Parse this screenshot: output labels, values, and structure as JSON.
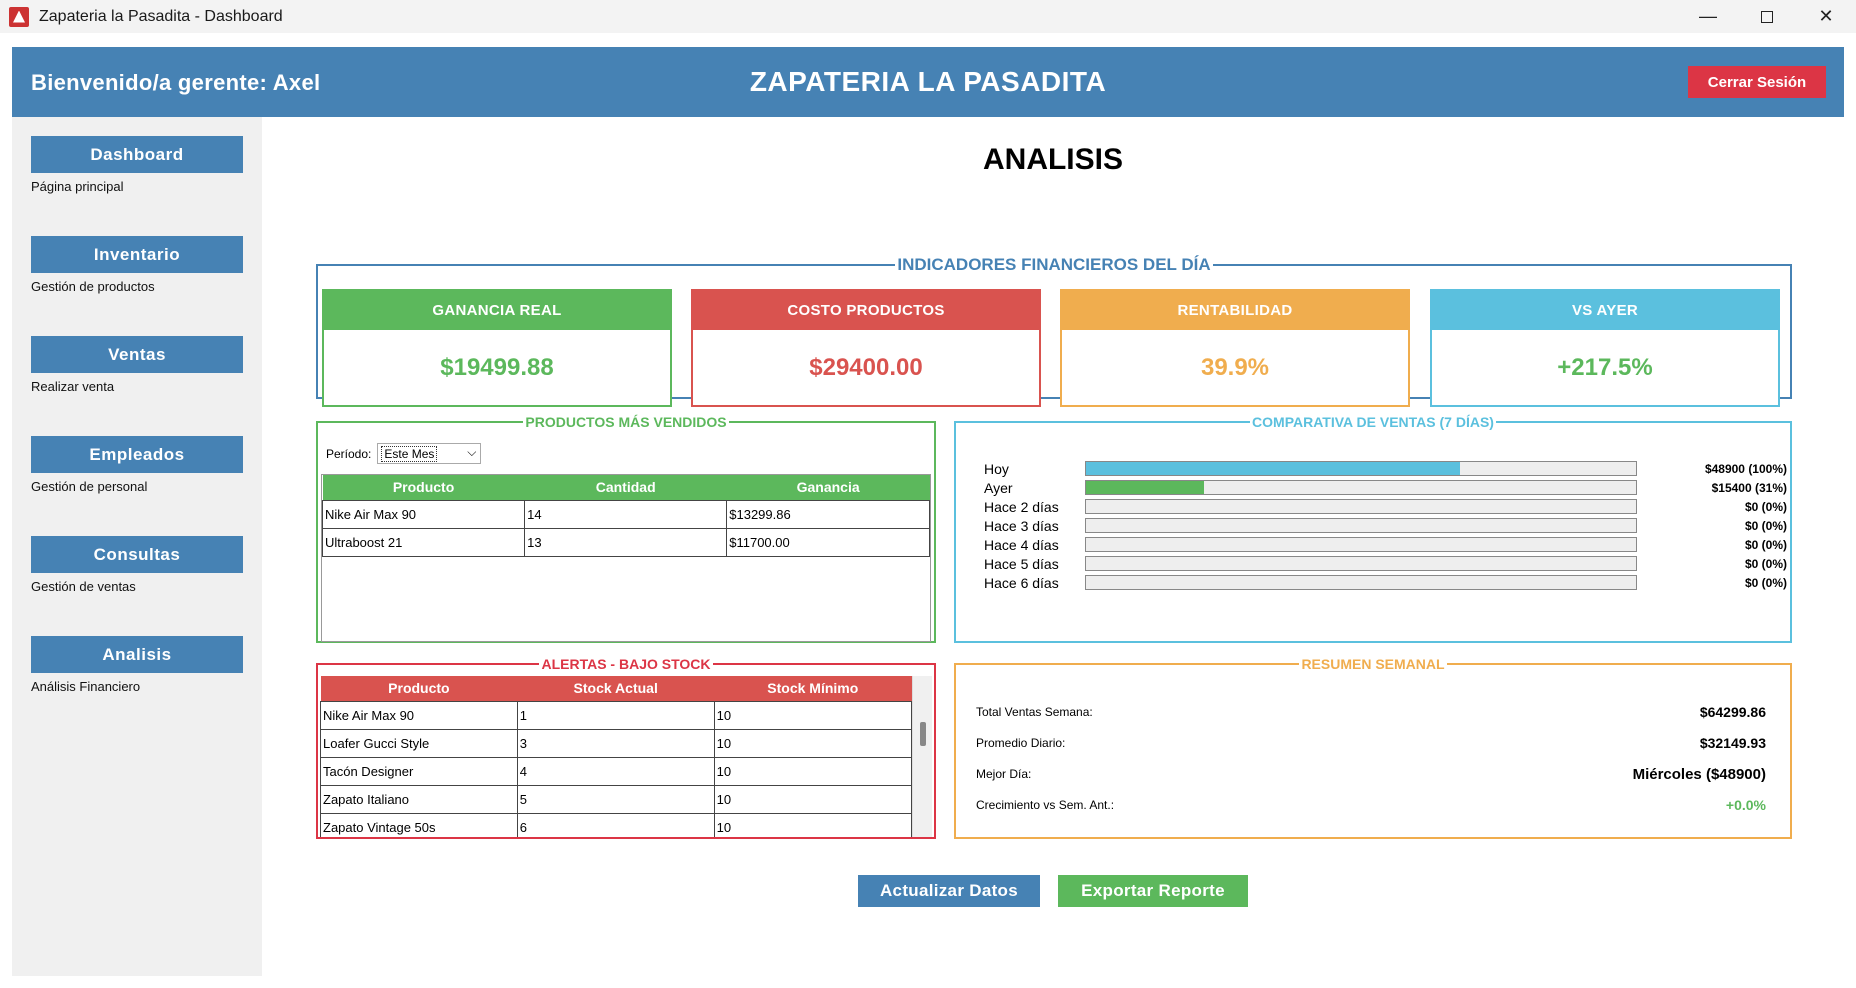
{
  "window": {
    "title": "Zapateria la Pasadita - Dashboard",
    "minimize": "—",
    "close": "✕"
  },
  "header": {
    "welcome": "Bienvenido/a gerente: Axel",
    "brand": "ZAPATERIA LA PASADITA",
    "logout": "Cerrar Sesión"
  },
  "sidebar": {
    "items": [
      {
        "label": "Dashboard",
        "desc": "Página principal"
      },
      {
        "label": "Inventario",
        "desc": "Gestión de productos"
      },
      {
        "label": "Ventas",
        "desc": "Realizar venta"
      },
      {
        "label": "Empleados",
        "desc": "Gestión de personal"
      },
      {
        "label": "Consultas",
        "desc": "Gestión de ventas"
      },
      {
        "label": "Analisis",
        "desc": "Análisis Financiero"
      }
    ]
  },
  "main": {
    "title": "ANALISIS",
    "indicators": {
      "legend": "INDICADORES FINANCIEROS DEL DÍA",
      "cards": [
        {
          "label": "GANANCIA REAL",
          "value": "$19499.88",
          "color": "#5cb85c"
        },
        {
          "label": "COSTO PRODUCTOS",
          "value": "$29400.00",
          "color": "#d9534f"
        },
        {
          "label": "RENTABILIDAD",
          "value": "39.9%",
          "color": "#f0ad4e"
        },
        {
          "label": "VS AYER",
          "value": "+217.5%",
          "color": "#5bc0de",
          "value_color": "#5cb85c"
        }
      ]
    },
    "top_products": {
      "legend": "PRODUCTOS MÁS VENDIDOS",
      "period_label": "Período:",
      "period_value": "Este Mes",
      "columns": [
        "Producto",
        "Cantidad",
        "Ganancia"
      ],
      "rows": [
        [
          "Nike Air Max 90",
          "14",
          "$13299.86"
        ],
        [
          "Ultraboost 21",
          "13",
          "$11700.00"
        ]
      ]
    },
    "sales_compare": {
      "legend": "COMPARATIVA DE VENTAS (7 DÍAS)",
      "rows": [
        {
          "label": "Hoy",
          "value": "$48900 (100%)",
          "fraction": 0.68,
          "color": "#5bc0de"
        },
        {
          "label": "Ayer",
          "value": "$15400 (31%)",
          "fraction": 0.214,
          "color": "#5cb85c"
        },
        {
          "label": "Hace 2 días",
          "value": "$0 (0%)",
          "fraction": 0,
          "color": "#5bc0de"
        },
        {
          "label": "Hace 3 días",
          "value": "$0 (0%)",
          "fraction": 0,
          "color": "#5bc0de"
        },
        {
          "label": "Hace 4 días",
          "value": "$0 (0%)",
          "fraction": 0,
          "color": "#5bc0de"
        },
        {
          "label": "Hace 5 días",
          "value": "$0 (0%)",
          "fraction": 0,
          "color": "#5bc0de"
        },
        {
          "label": "Hace 6 días",
          "value": "$0 (0%)",
          "fraction": 0,
          "color": "#5bc0de"
        }
      ]
    },
    "low_stock": {
      "legend": "ALERTAS - BAJO STOCK",
      "columns": [
        "Producto",
        "Stock Actual",
        "Stock Mínimo"
      ],
      "rows": [
        [
          "Nike Air Max 90",
          "1",
          "10"
        ],
        [
          "Loafer Gucci Style",
          "3",
          "10"
        ],
        [
          "Tacón Designer",
          "4",
          "10"
        ],
        [
          "Zapato Italiano",
          "5",
          "10"
        ],
        [
          "Zapato Vintage 50s",
          "6",
          "10"
        ]
      ]
    },
    "weekly": {
      "legend": "RESUMEN SEMANAL",
      "rows": [
        {
          "label": "Total Ventas Semana:",
          "value": "$64299.86"
        },
        {
          "label": "Promedio Diario:",
          "value": "$32149.93"
        },
        {
          "label": "Mejor Día:",
          "value": "Miércoles ($48900)"
        },
        {
          "label": "Crecimiento vs Sem. Ant.:",
          "value": "+0.0%",
          "color": "#5cb85c"
        }
      ]
    },
    "actions": {
      "refresh": "Actualizar Datos",
      "export": "Exportar Reporte"
    }
  },
  "colors": {
    "primary": "#4682b4",
    "danger": "#dc3545",
    "success": "#5cb85c",
    "error": "#d9534f",
    "warning": "#f0ad4e",
    "info": "#5bc0de",
    "sidebar_bg": "#f0f0f0"
  }
}
